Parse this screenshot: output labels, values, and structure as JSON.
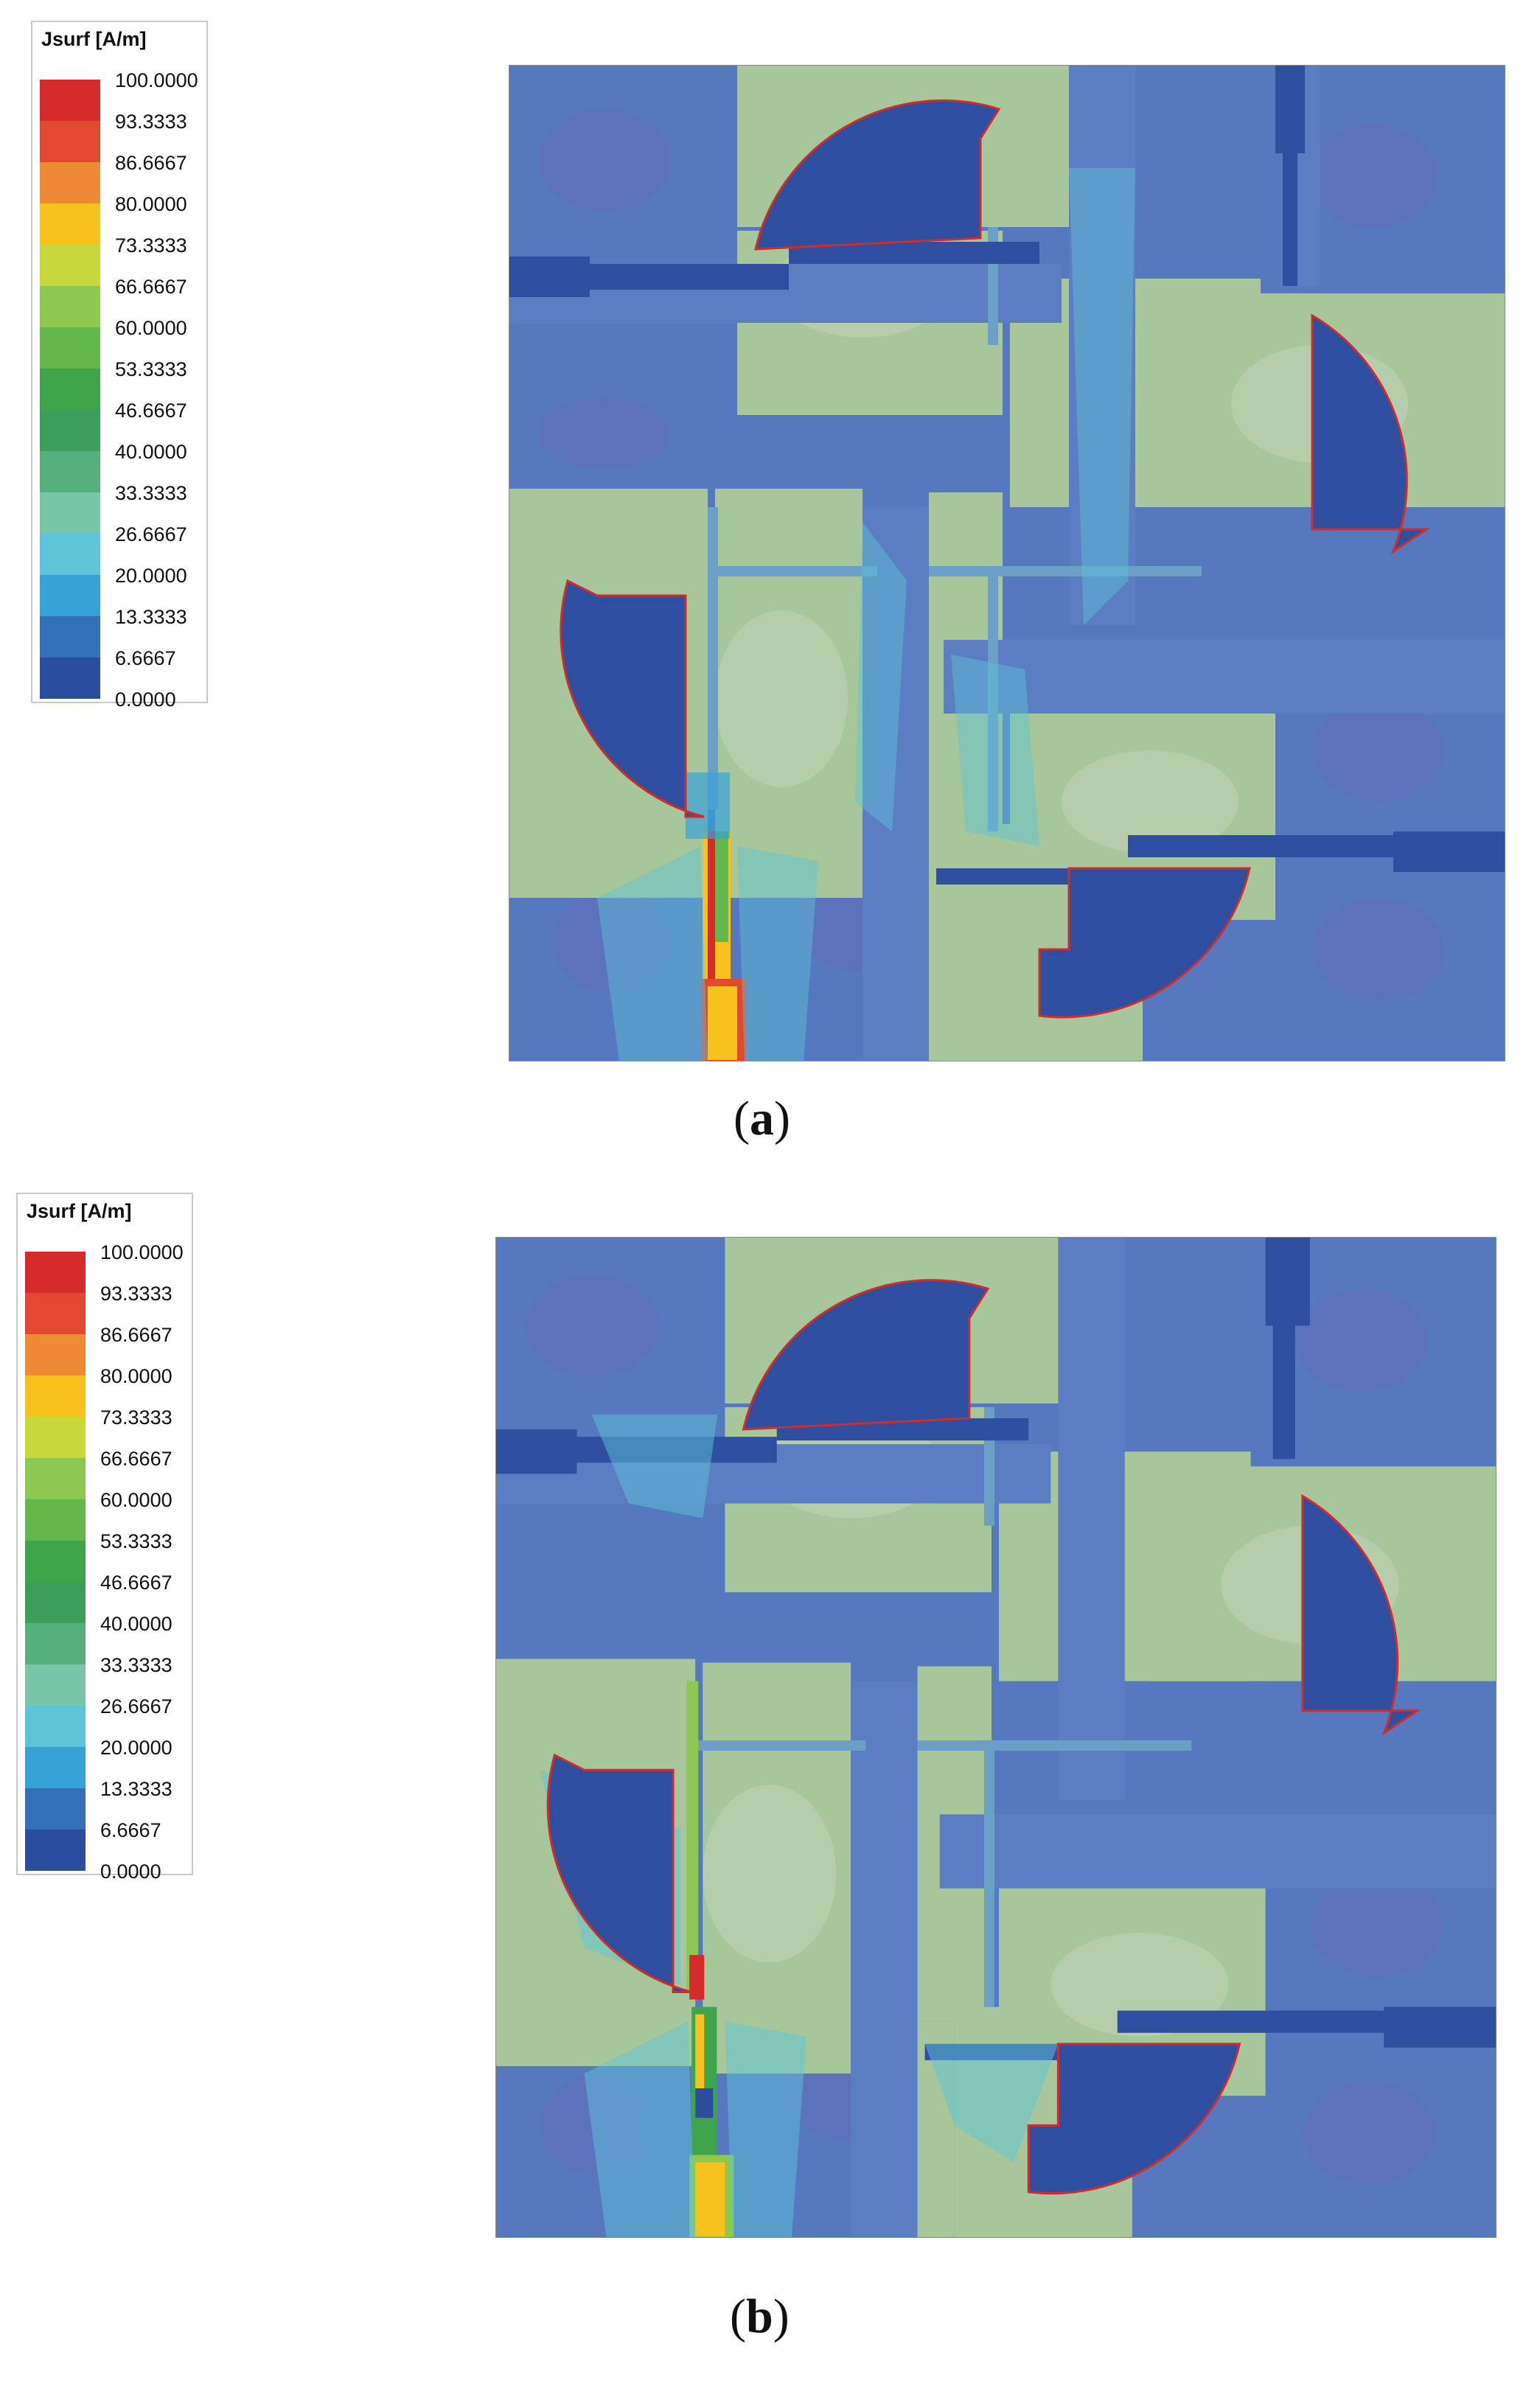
{
  "panels": [
    {
      "id": "a",
      "caption_letter": "a",
      "legend": {
        "title": "Jsurf [A/m]",
        "labels": [
          "100.0000",
          "93.3333",
          "86.6667",
          "80.0000",
          "73.3333",
          "66.6667",
          "60.0000",
          "53.3333",
          "46.6667",
          "40.0000",
          "33.3333",
          "26.6667",
          "20.0000",
          "13.3333",
          "6.6667",
          "0.0000"
        ]
      }
    },
    {
      "id": "b",
      "caption_letter": "b",
      "legend": {
        "title": "Jsurf [A/m]",
        "labels": [
          "100.0000",
          "93.3333",
          "86.6667",
          "80.0000",
          "73.3333",
          "66.6667",
          "60.0000",
          "53.3333",
          "46.6667",
          "40.0000",
          "33.3333",
          "26.6667",
          "20.0000",
          "13.3333",
          "6.6667",
          "0.0000"
        ]
      }
    }
  ],
  "colors": {
    "scale": [
      "#d62a2a",
      "#e0492f",
      "#ee8a35",
      "#f7c21c",
      "#c6d83b",
      "#8fc850",
      "#63b84c",
      "#3ea54a",
      "#3c9e5a",
      "#55b07c",
      "#79c5a8",
      "#5ec4d8",
      "#37a2d6",
      "#3271b8",
      "#2b4d9e"
    ],
    "metal_blue": "#5578bf",
    "metal_green": "#a7c79a",
    "dark_patch": "#2e4f9f",
    "edge": "#d22b2b"
  }
}
